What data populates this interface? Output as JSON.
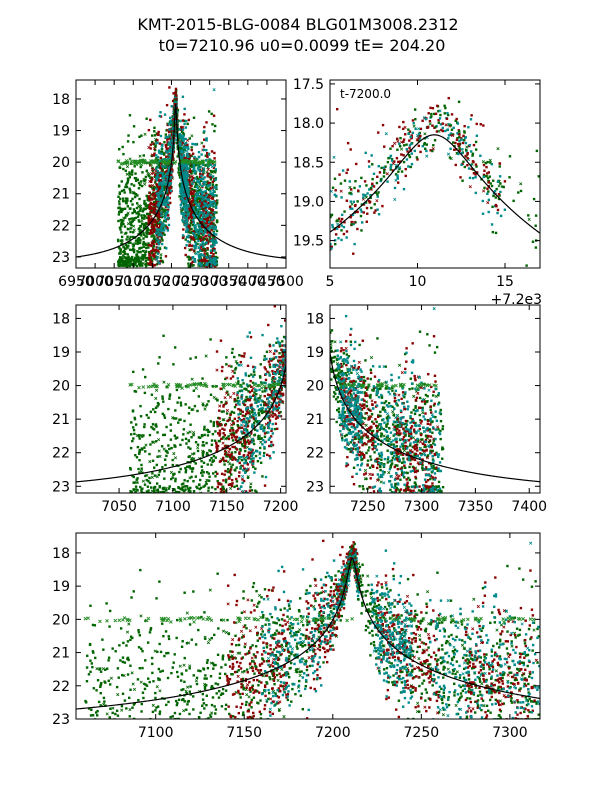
{
  "title": {
    "line1": "KMT-2015-BLG-0084 BLG01M3008.2312",
    "line2": "t0=7210.96 u0=0.0099 tE= 204.20"
  },
  "chart_data": {
    "type": "scatter",
    "event": {
      "t0": 7210.96,
      "u0": 0.0099,
      "tE": 204.2,
      "base_mag": 23.2,
      "peak_mag": 18.15
    },
    "series_colors": {
      "ctio": "#8b0000",
      "saao": "#008b8b",
      "sso": "#006400",
      "flat": "#228b22"
    },
    "panels": [
      {
        "id": "full",
        "xlim": [
          6950,
          7500
        ],
        "ylim": [
          23.35,
          17.4
        ],
        "x_ticks": [
          6950,
          7000,
          7050,
          7100,
          7150,
          7200,
          7250,
          7300,
          7350,
          7400,
          7450,
          7500
        ],
        "x_tick_labels": [
          "6950",
          "7000",
          "7050",
          "7100",
          "7150",
          "7200",
          "7250",
          "7300",
          "7350",
          "7400",
          "7450",
          "7500"
        ],
        "y_ticks": [
          18,
          19,
          20,
          21,
          22,
          23
        ],
        "y_tick_labels": [
          "18",
          "19",
          "20",
          "21",
          "22",
          "23"
        ],
        "x_offset": 0,
        "annotation": ""
      },
      {
        "id": "zoom-peak",
        "xlim": [
          5,
          17
        ],
        "ylim": [
          19.85,
          17.45
        ],
        "x_ticks": [
          5,
          10,
          15
        ],
        "x_tick_labels": [
          "5",
          "10",
          "15"
        ],
        "y_ticks": [
          17.5,
          18.0,
          18.5,
          19.0,
          19.5
        ],
        "y_tick_labels": [
          "17.5",
          "18.0",
          "18.5",
          "19.0",
          "19.5"
        ],
        "x_offset": 7200,
        "offset_label": "+7.2e3",
        "annotation": "t-7200.0"
      },
      {
        "id": "pre-peak",
        "xlim": [
          7010,
          7205
        ],
        "ylim": [
          23.2,
          17.6
        ],
        "x_ticks": [
          7050,
          7100,
          7150,
          7200
        ],
        "x_tick_labels": [
          "7050",
          "7100",
          "7150",
          "7200"
        ],
        "y_ticks": [
          18,
          19,
          20,
          21,
          22,
          23
        ],
        "y_tick_labels": [
          "18",
          "19",
          "20",
          "21",
          "22",
          "23"
        ],
        "x_offset": 0,
        "annotation": ""
      },
      {
        "id": "post-peak",
        "xlim": [
          7215,
          7410
        ],
        "ylim": [
          23.2,
          17.6
        ],
        "x_ticks": [
          7250,
          7300,
          7350,
          7400
        ],
        "x_tick_labels": [
          "7250",
          "7300",
          "7350",
          "7400"
        ],
        "y_ticks": [
          18,
          19,
          20,
          21,
          22,
          23
        ],
        "y_tick_labels": [
          "18",
          "19",
          "20",
          "21",
          "22",
          "23"
        ],
        "x_offset": 0,
        "annotation": ""
      },
      {
        "id": "season",
        "xlim": [
          7055,
          7317
        ],
        "ylim": [
          23.0,
          17.4
        ],
        "x_ticks": [
          7100,
          7150,
          7200,
          7250,
          7300
        ],
        "x_tick_labels": [
          "7100",
          "7150",
          "7200",
          "7250",
          "7300"
        ],
        "y_ticks": [
          18,
          19,
          20,
          21,
          22,
          23
        ],
        "y_tick_labels": [
          "18",
          "19",
          "20",
          "21",
          "22",
          "23"
        ],
        "x_offset": 0,
        "annotation": ""
      }
    ]
  }
}
